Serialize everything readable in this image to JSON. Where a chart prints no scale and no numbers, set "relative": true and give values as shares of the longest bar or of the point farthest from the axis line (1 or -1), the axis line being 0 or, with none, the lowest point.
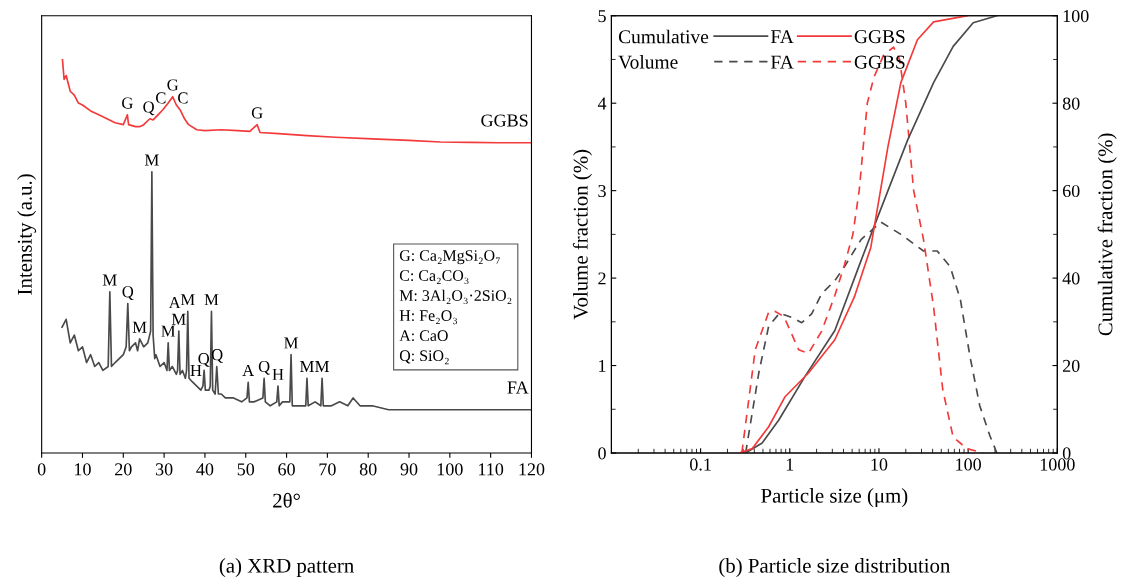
{
  "chart_data": [
    {
      "type": "line",
      "title": "(a) XRD pattern",
      "xlabel": "2θ°",
      "ylabel": "Intensity (a.u.)",
      "relative": true,
      "xlim": [
        0,
        120
      ],
      "xticks": [
        0,
        10,
        20,
        30,
        40,
        50,
        60,
        70,
        80,
        90,
        100,
        110,
        120
      ],
      "series": [
        {
          "name": "GGBS",
          "color": "#f23a3a",
          "x": [
            5.1,
            5.5,
            6,
            7,
            8,
            9,
            10,
            12,
            14,
            16,
            18,
            20,
            21,
            21.3,
            23,
            24,
            25,
            26.5,
            27.3,
            28.5,
            29.7,
            31,
            32.1,
            33,
            33.9,
            35,
            36,
            38,
            40,
            44,
            48,
            51,
            52.8,
            53.5,
            58,
            65,
            72,
            81,
            90,
            97.7,
            105,
            112,
            120
          ],
          "values": [
            1.0,
            0.95,
            0.96,
            0.92,
            0.91,
            0.89,
            0.885,
            0.87,
            0.86,
            0.85,
            0.84,
            0.835,
            0.86,
            0.835,
            0.83,
            0.83,
            0.835,
            0.85,
            0.847,
            0.86,
            0.873,
            0.89,
            0.906,
            0.885,
            0.873,
            0.85,
            0.835,
            0.822,
            0.82,
            0.822,
            0.82,
            0.818,
            0.835,
            0.815,
            0.812,
            0.807,
            0.803,
            0.799,
            0.795,
            0.791,
            0.79,
            0.789,
            0.789
          ]
        },
        {
          "name": "FA",
          "color": "#4a4a4a",
          "x": [
            5,
            6,
            7,
            8,
            9,
            10,
            11,
            12,
            13,
            14,
            15,
            16.3,
            16.7,
            17.1,
            18,
            19,
            20,
            20.7,
            21.1,
            21.5,
            22,
            23,
            23.5,
            24,
            25,
            26,
            26.7,
            27.0,
            27.3,
            27.7,
            28,
            29,
            30,
            30.7,
            31,
            31.3,
            32,
            33,
            33.3,
            33.6,
            33.9,
            34.5,
            35.2,
            35.5,
            35.8,
            36.1,
            37,
            38,
            39,
            39.5,
            39.8,
            40.1,
            41,
            41.3,
            41.6,
            41.9,
            42.5,
            42.9,
            43.3,
            44,
            45,
            47,
            49,
            50.3,
            50.6,
            50.9,
            52,
            54.2,
            54.5,
            54.8,
            56,
            57.6,
            57.9,
            58.2,
            59,
            60.8,
            61.1,
            61.4,
            62.5,
            64.7,
            65,
            65.3,
            67,
            68.4,
            68.7,
            69,
            71,
            73,
            75,
            76.3,
            78,
            81,
            85,
            90,
            95,
            100,
            105,
            110,
            115,
            120
          ],
          "values": [
            0.32,
            0.34,
            0.28,
            0.3,
            0.26,
            0.27,
            0.23,
            0.25,
            0.22,
            0.23,
            0.21,
            0.22,
            0.41,
            0.22,
            0.23,
            0.24,
            0.25,
            0.27,
            0.38,
            0.26,
            0.27,
            0.28,
            0.26,
            0.29,
            0.27,
            0.28,
            0.31,
            0.715,
            0.3,
            0.24,
            0.25,
            0.22,
            0.23,
            0.21,
            0.28,
            0.21,
            0.22,
            0.2,
            0.21,
            0.31,
            0.2,
            0.21,
            0.19,
            0.21,
            0.36,
            0.19,
            0.18,
            0.17,
            0.16,
            0.17,
            0.21,
            0.16,
            0.16,
            0.17,
            0.36,
            0.16,
            0.15,
            0.22,
            0.15,
            0.15,
            0.14,
            0.14,
            0.13,
            0.14,
            0.18,
            0.13,
            0.13,
            0.14,
            0.19,
            0.13,
            0.12,
            0.13,
            0.17,
            0.12,
            0.13,
            0.13,
            0.25,
            0.12,
            0.12,
            0.12,
            0.19,
            0.12,
            0.13,
            0.12,
            0.19,
            0.12,
            0.12,
            0.13,
            0.12,
            0.14,
            0.12,
            0.12,
            0.11,
            0.11,
            0.11,
            0.11,
            0.11,
            0.11,
            0.11,
            0.11
          ]
        }
      ],
      "annotations": [
        {
          "text": "G",
          "x": 21,
          "y": 0.86
        },
        {
          "text": "Q",
          "x": 26.2,
          "y": 0.85
        },
        {
          "text": "C",
          "x": 29.2,
          "y": 0.873
        },
        {
          "text": "G",
          "x": 32.1,
          "y": 0.906
        },
        {
          "text": "C",
          "x": 34.6,
          "y": 0.873
        },
        {
          "text": "G",
          "x": 52.8,
          "y": 0.835
        },
        {
          "text": "M",
          "x": 16.7,
          "y": 0.41
        },
        {
          "text": "Q",
          "x": 21.1,
          "y": 0.38
        },
        {
          "text": "M",
          "x": 24,
          "y": 0.29
        },
        {
          "text": "M",
          "x": 27.0,
          "y": 0.715
        },
        {
          "text": "M",
          "x": 31,
          "y": 0.28
        },
        {
          "text": "M",
          "x": 33.6,
          "y": 0.31
        },
        {
          "text": "A",
          "x": 33.6,
          "y": 0.31
        },
        {
          "text": "M",
          "x": 35.8,
          "y": 0.36
        },
        {
          "text": "H",
          "x": 37.8,
          "y": 0.18
        },
        {
          "text": "Q",
          "x": 39.7,
          "y": 0.21
        },
        {
          "text": "M",
          "x": 41.6,
          "y": 0.36
        },
        {
          "text": "Q",
          "x": 43,
          "y": 0.22
        },
        {
          "text": "A",
          "x": 50.6,
          "y": 0.18
        },
        {
          "text": "Q",
          "x": 54.5,
          "y": 0.19
        },
        {
          "text": "H",
          "x": 57.9,
          "y": 0.17
        },
        {
          "text": "M",
          "x": 61.1,
          "y": 0.25
        },
        {
          "text": "M",
          "x": 65,
          "y": 0.19
        },
        {
          "text": "M",
          "x": 68.7,
          "y": 0.19
        },
        "G: Ca₂MgSi₂O₇",
        "C: Ca₂CO₃",
        "M: 3Al₂O₃·2SiO₂",
        "H: Fe₂O₃",
        "A: CaO",
        "Q: SiO₂"
      ]
    },
    {
      "type": "line",
      "title": "(b) Particle size distribution",
      "xlabel": "Particle size (μm)",
      "ylabel": "Volume fraction (%)",
      "y2label": "Cumulative fraction (%)",
      "log": "x",
      "xlim": [
        0.01,
        1000
      ],
      "xticks": [
        0.1,
        1,
        10,
        100,
        1000
      ],
      "ylim": [
        0,
        5
      ],
      "yticks": [
        0,
        1,
        2,
        3,
        4,
        5
      ],
      "y2lim": [
        0,
        100
      ],
      "y2ticks": [
        0,
        20,
        40,
        60,
        80,
        100
      ],
      "legend": "top left",
      "annotations": [
        "Cumulative",
        "Volume"
      ],
      "series": [
        {
          "name": "FA",
          "color": "#4a4a4a",
          "axis": "y2",
          "line_style": "solid",
          "x": [
            0.32,
            0.49,
            0.75,
            1.47,
            3.2,
            6.3,
            9.7,
            21,
            41,
            68,
            114,
            210
          ],
          "values": [
            0,
            2.3,
            7.5,
            17.4,
            28,
            44,
            54,
            71.6,
            84.7,
            93,
            98.4,
            100
          ]
        },
        {
          "name": "GGBS",
          "color": "#f23a3a",
          "axis": "y2",
          "line_style": "solid",
          "x": [
            0.27,
            0.38,
            0.58,
            0.88,
            1.62,
            3.2,
            5.3,
            8.1,
            12.6,
            17.6,
            27,
            41,
            97
          ],
          "values": [
            0,
            1,
            6,
            12.8,
            18.3,
            25.9,
            35.7,
            47,
            70,
            84.7,
            94.5,
            98.6,
            100
          ]
        },
        {
          "name": "FA",
          "color": "#4a4a4a",
          "line_style": "dashed",
          "x": [
            0.32,
            0.45,
            0.58,
            0.77,
            1.05,
            1.36,
            1.76,
            2.27,
            3.2,
            4.1,
            6.3,
            10.5,
            17.6,
            31.6,
            45,
            63,
            82,
            105,
            135,
            175,
            210
          ],
          "values": [
            0,
            0.92,
            1.45,
            1.6,
            1.55,
            1.49,
            1.59,
            1.82,
            1.97,
            2.13,
            2.44,
            2.64,
            2.5,
            2.31,
            2.31,
            2.13,
            1.75,
            1.1,
            0.54,
            0.2,
            0
          ]
        },
        {
          "name": "GGBS",
          "color": "#f23a3a",
          "line_style": "dashed",
          "x": [
            0.29,
            0.41,
            0.58,
            0.68,
            0.86,
            1.26,
            1.62,
            2.27,
            3.2,
            4.1,
            5.1,
            6,
            7.4,
            8.8,
            11.3,
            14.6,
            17,
            20,
            24.5,
            31.6,
            41,
            52,
            68,
            97,
            147
          ],
          "values": [
            0,
            1.18,
            1.61,
            1.62,
            1.56,
            1.18,
            1.14,
            1.39,
            1.8,
            2.15,
            2.5,
            3.0,
            4.0,
            4.3,
            4.55,
            4.64,
            4.5,
            4.0,
            3.0,
            2.44,
            1.67,
            0.72,
            0.18,
            0.05,
            0
          ]
        }
      ]
    }
  ]
}
